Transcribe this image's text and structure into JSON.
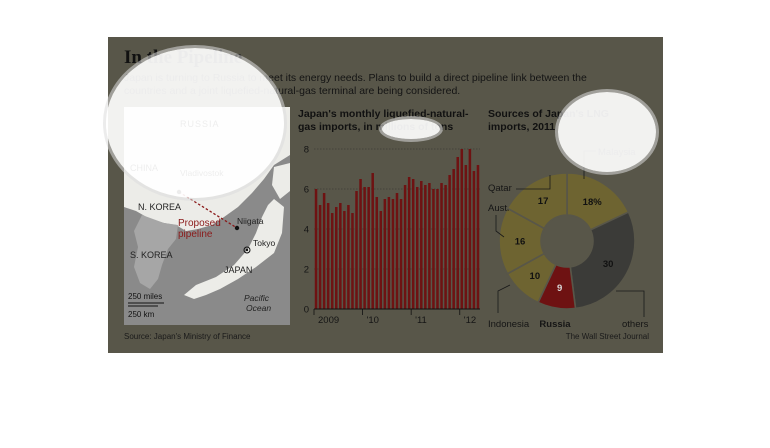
{
  "header": {
    "title": "In the Pipeline",
    "subtitle_line1": "Japan is turning to Russia to meet its energy needs. Plans to build a direct pipeline link between the",
    "subtitle_line2": "countries and a joint liquefied-natural-gas terminal are being considered."
  },
  "map": {
    "labels": {
      "russia": "RUSSIA",
      "china": "CHINA",
      "vladivostok": "Vladivostok",
      "n_korea": "N. KOREA",
      "s_korea": "S. KOREA",
      "japan": "JAPAN",
      "niigata": "Niigata",
      "tokyo": "Tokyo",
      "proposed_line1": "Proposed",
      "proposed_line2": "pipeline",
      "pacific_line1": "Pacific",
      "pacific_line2": "Ocean",
      "scale_miles": "250 miles",
      "scale_km": "250 km"
    },
    "colors": {
      "land": "#ecece8",
      "sea": "#8a8a8a",
      "korea": "#a6a6a6",
      "pipeline": "#8b1a1a"
    }
  },
  "footer": {
    "source": "Source: Japan's Ministry of Finance",
    "credit": "The Wall Street Journal"
  },
  "chart_data": [
    {
      "type": "bar",
      "title_line1": "Japan's monthly liquefied-natural-",
      "title_line2": "gas imports, in millions of tons",
      "ylim": [
        0,
        8
      ],
      "y_ticks": [
        0,
        2,
        4,
        6,
        8
      ],
      "x_ticks": [
        "2009",
        "'10",
        "'11",
        "'12"
      ],
      "x_tick_month_index": [
        0,
        12,
        24,
        36
      ],
      "grid": true,
      "color": "#6e1212",
      "x_start": "2009-01",
      "x_end": "2012-05",
      "values": [
        6.0,
        5.2,
        5.8,
        5.3,
        4.8,
        5.1,
        5.3,
        4.9,
        5.2,
        4.8,
        5.9,
        6.5,
        6.1,
        6.1,
        6.8,
        5.6,
        4.9,
        5.5,
        5.6,
        5.5,
        5.8,
        5.5,
        6.2,
        6.6,
        6.5,
        6.1,
        6.4,
        6.2,
        6.3,
        6.0,
        6.0,
        6.3,
        6.2,
        6.7,
        7.0,
        7.6,
        8.0,
        7.2,
        8.0,
        6.9,
        7.2
      ]
    },
    {
      "type": "pie",
      "title_line1": "Sources of Japan's LNG",
      "title_line2": "imports, 2011",
      "unit_note": "percent",
      "slices": [
        {
          "label": "Malaysia",
          "value": 18,
          "text": "18%",
          "color": "#6e6431"
        },
        {
          "label": "others",
          "value": 30,
          "text": "30",
          "color": "#3b3b38"
        },
        {
          "label": "Russia",
          "value": 9,
          "text": "9",
          "color": "#6e1212"
        },
        {
          "label": "Indonesia",
          "value": 10,
          "text": "10",
          "color": "#6e6431"
        },
        {
          "label": "Australia",
          "value": 16,
          "text": "16",
          "color": "#6e6431"
        },
        {
          "label": "Qatar",
          "value": 17,
          "text": "17",
          "color": "#6e6431"
        }
      ]
    }
  ]
}
